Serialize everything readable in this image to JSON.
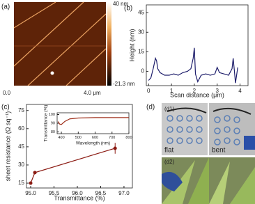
{
  "panels": {
    "a": {
      "label": "(a)",
      "colorbar_max": "40 nm",
      "colorbar_min": "-21.3 nm",
      "x_start": "0.0",
      "x_end": "4.0 μm"
    },
    "b": {
      "label": "(b)"
    },
    "c": {
      "label": "(c)"
    },
    "d": {
      "label": "(d)",
      "d1": "(d1)",
      "flat": "flat",
      "bent": "bent",
      "d2": "(d2)"
    }
  },
  "chart_data": [
    {
      "type": "line",
      "xlabel": "Scan distance (μm)",
      "ylabel": "Height (nm)",
      "color": "#1c1c6a",
      "x": [
        0,
        0.1,
        0.2,
        0.3,
        0.35,
        0.4,
        0.5,
        0.7,
        0.9,
        1.1,
        1.3,
        1.5,
        1.7,
        1.85,
        1.95,
        2.0,
        2.05,
        2.15,
        2.3,
        2.5,
        2.7,
        2.9,
        3.0,
        3.1,
        3.3,
        3.5,
        3.65,
        3.7,
        3.75,
        3.8,
        3.9
      ],
      "values": [
        -7,
        -5,
        2,
        10,
        8,
        2,
        -1,
        -3,
        -3,
        -2,
        -3,
        -1,
        0,
        2,
        10,
        18,
        -2,
        -8,
        -3,
        -2,
        -3,
        -2,
        3,
        -1,
        -2,
        -3,
        2,
        10,
        1,
        -9,
        3
      ],
      "xlim": [
        -0.1,
        4.35
      ],
      "ylim": [
        -11,
        51
      ],
      "xticks": [
        0,
        1,
        2,
        3,
        4
      ],
      "yticks": [
        0,
        15,
        30,
        45
      ]
    },
    {
      "type": "line",
      "xlabel": "Transmittance (%)",
      "ylabel": "sheet resistance (Ω sq⁻¹)",
      "color": "#8b1a12",
      "markers": true,
      "x": [
        95.0,
        95.09,
        96.81
      ],
      "values": [
        15,
        23.7,
        43.8
      ],
      "errors": [
        null,
        null,
        4.5
      ],
      "xlim": [
        94.91,
        97.18
      ],
      "ylim": [
        11,
        80
      ],
      "xticks": [
        {
          "value": 95,
          "label": "95.0"
        },
        {
          "value": 95.5,
          "label": "95.5"
        },
        {
          "value": 96,
          "label": "96.0"
        },
        {
          "value": 96.5,
          "label": "96.5"
        },
        {
          "value": 97,
          "label": "97.0"
        }
      ],
      "yticks": [
        15,
        30,
        45,
        60,
        75
      ]
    },
    {
      "type": "line",
      "xlabel": "Wavelength (nm)",
      "ylabel": "Transmittance (%)",
      "color": "#a0321e",
      "x": [
        380,
        390,
        400,
        420,
        450,
        500,
        600,
        700,
        800
      ],
      "values": [
        92,
        89,
        88.5,
        92,
        95,
        96,
        96.5,
        96.5,
        96.5
      ],
      "xlim": [
        375,
        800
      ],
      "ylim": [
        78,
        102
      ],
      "xticks": [
        400,
        500,
        600,
        700,
        800
      ],
      "yticks": [
        80,
        90,
        100
      ]
    }
  ]
}
